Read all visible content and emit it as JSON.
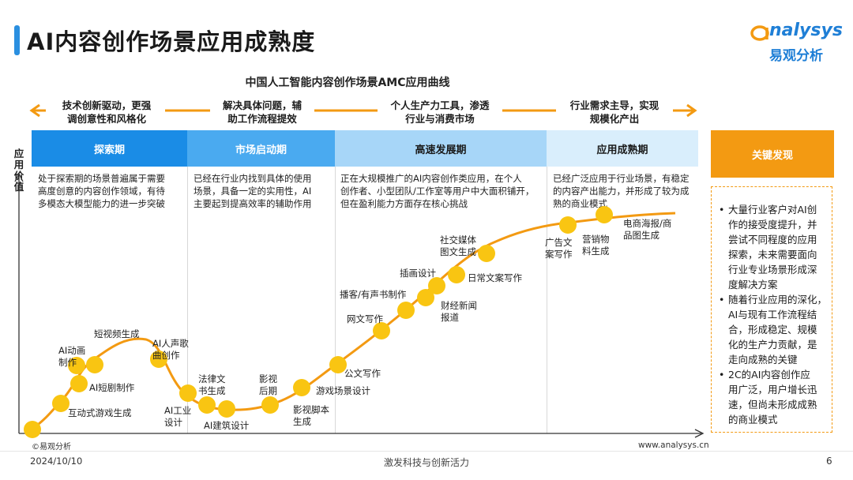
{
  "page": {
    "title": "AI内容创作场景应用成熟度",
    "logo": {
      "text": "nalysys",
      "cn": "易观分析"
    },
    "date": "2024/10/10",
    "slogan": "激发科技与创新活力",
    "page_number": "6",
    "copyright": "©易观分析",
    "website": "www.analysys.cn"
  },
  "chart_data": {
    "type": "line",
    "title": "中国人工智能内容创作场景AMC应用曲线",
    "ylabel": "应用价值",
    "colors": {
      "curve": "#f39a12",
      "point": "#f9c512",
      "key_header": "#f39a12"
    },
    "drivers": [
      {
        "line1": "技术创新驱动，更强",
        "line2": "调创意性和风格化"
      },
      {
        "line1": "解决具体问题，辅",
        "line2": "助工作流程提效"
      },
      {
        "line1": "个人生产力工具，渗透",
        "line2": "行业与消费市场"
      },
      {
        "line1": "行业需求主导，实现",
        "line2": "规模化产出"
      }
    ],
    "stages": [
      {
        "name": "探索期",
        "color": "#1a8ce6",
        "text_color": "#ffffff",
        "desc": [
          "处于探索期的场景普遍属于需要",
          "高度创意的内容创作领域，有待",
          "多模态大模型能力的进一步突破"
        ]
      },
      {
        "name": "市场启动期",
        "color": "#4aaaf0",
        "text_color": "#ffffff",
        "desc": [
          "已经在行业内找到具体的使用",
          "场景，具备一定的实用性，AI",
          "主要起到提高效率的辅助作用"
        ]
      },
      {
        "name": "高速发展期",
        "color": "#a7d6f8",
        "text_color": "#1a1a1a",
        "desc": [
          "正在大规模推广的AI内容创作类应用，在个人",
          "创作者、小型团队/工作室等用户中大面积铺开，",
          "但在盈利能力方面存在核心挑战"
        ]
      },
      {
        "name": "应用成熟期",
        "color": "#d9eefc",
        "text_color": "#1a1a1a",
        "desc": [
          "已经广泛应用于行业场景，有稳定",
          "的内容产出能力，并形成了较为成",
          "熟的商业模式"
        ]
      }
    ],
    "points": [
      {
        "id": "origin",
        "label": []
      },
      {
        "id": "interactive-game",
        "label": [
          "互动式游戏生成"
        ]
      },
      {
        "id": "ai-short-drama",
        "label": [
          "AI短剧制作"
        ]
      },
      {
        "id": "ai-animation",
        "label": [
          "AI动画",
          "制作"
        ]
      },
      {
        "id": "short-video",
        "label": [
          "短视频生成"
        ]
      },
      {
        "id": "ai-voice-song",
        "label": [
          "AI人声歌",
          "曲创作"
        ]
      },
      {
        "id": "legal-doc",
        "label": [
          "法律文",
          "书生成"
        ]
      },
      {
        "id": "ai-industrial",
        "label": [
          "AI工业",
          "设计"
        ]
      },
      {
        "id": "ai-architecture",
        "label": [
          "AI建筑设计"
        ]
      },
      {
        "id": "film-post",
        "label": [
          "影视",
          "后期"
        ]
      },
      {
        "id": "film-script",
        "label": [
          "影视脚本",
          "生成"
        ]
      },
      {
        "id": "game-scene",
        "label": [
          "游戏场景设计"
        ]
      },
      {
        "id": "official-doc",
        "label": [
          "公文写作"
        ]
      },
      {
        "id": "web-novel",
        "label": [
          "网文写作"
        ]
      },
      {
        "id": "podcast",
        "label": [
          "播客/有声书制作"
        ]
      },
      {
        "id": "finance-news",
        "label": [
          "财经新闻",
          "报道"
        ]
      },
      {
        "id": "illustration",
        "label": [
          "插画设计"
        ]
      },
      {
        "id": "daily-copy",
        "label": [
          "日常文案写作"
        ]
      },
      {
        "id": "social-media",
        "label": [
          "社交媒体",
          "图文生成"
        ]
      },
      {
        "id": "ad-copy",
        "label": [
          "广告文",
          "案写作"
        ]
      },
      {
        "id": "marketing-material",
        "label": [
          "营销物",
          "料生成"
        ]
      },
      {
        "id": "ecommerce-poster",
        "label": [
          "电商海报/商",
          "品图生成"
        ]
      }
    ]
  },
  "key_findings": {
    "header": "关键发现",
    "items": [
      {
        "bullet": "•",
        "lines": [
          "大量行业客户对AI创",
          "作的接受度提升，并",
          "尝试不同程度的应用",
          "探索，未来需要面向",
          "行业专业场景形成深",
          "度解决方案"
        ]
      },
      {
        "bullet": "•",
        "lines": [
          "随着行业应用的深化，",
          "AI与现有工作流程结",
          "合，形成稳定、规模",
          "化的生产力贡献，是",
          "走向成熟的关键"
        ]
      },
      {
        "bullet": "•",
        "lines": [
          "2C的AI内容创作应",
          "用广泛，用户增长迅",
          "速，但尚未形成成熟",
          "的商业模式"
        ]
      }
    ]
  }
}
